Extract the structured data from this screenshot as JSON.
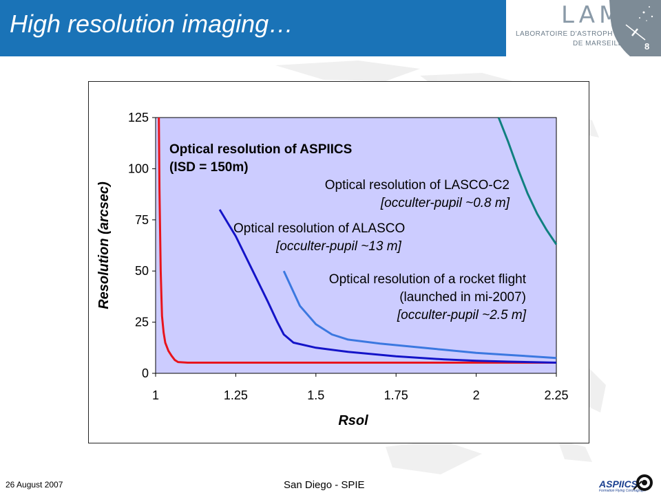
{
  "header": {
    "title": "High resolution imaging…",
    "page_number": "8",
    "logo": {
      "name": "LAM",
      "line1": "LABORATOIRE D'ASTROPHYSIQUE",
      "line2": "DE MARSEILLE"
    }
  },
  "footer": {
    "date": "26 August 2007",
    "venue": "San Diego - SPIE",
    "logo_text": "ASPIICS",
    "logo_subtext": "Formation Flying Coronagraph"
  },
  "colors": {
    "header_bg": "#1a73b7",
    "plot_bg": "#ccccff",
    "aspiics": "#e8141c",
    "alasco": "#1414c8",
    "rocket": "#3b78e0",
    "lasco_c2": "#108080"
  },
  "chart_data": {
    "type": "line",
    "title": "",
    "xlabel": "Rsol",
    "ylabel": "Resolution (arcsec)",
    "xlim": [
      1,
      2.25
    ],
    "ylim": [
      0,
      125
    ],
    "xticks": [
      "1",
      "1.25",
      "1.5",
      "1.75",
      "2",
      "2.25"
    ],
    "yticks": [
      "0",
      "25",
      "50",
      "75",
      "100",
      "125"
    ],
    "grid": false,
    "legend": "none",
    "series": [
      {
        "key": "aspiics",
        "x": [
          1.01,
          1.012,
          1.014,
          1.016,
          1.018,
          1.02,
          1.025,
          1.03,
          1.04,
          1.05,
          1.06,
          1.07,
          1.1,
          1.3,
          1.6,
          2.0,
          2.25
        ],
        "y": [
          125,
          90,
          70,
          50,
          38,
          28,
          20,
          15,
          11,
          8.5,
          6.5,
          5.5,
          5.2,
          5.2,
          5.2,
          5.2,
          5.2
        ]
      },
      {
        "key": "alasco",
        "x": [
          1.2,
          1.25,
          1.3,
          1.35,
          1.38,
          1.4,
          1.43,
          1.5,
          1.6,
          1.75,
          1.9,
          2.0,
          2.1,
          2.25
        ],
        "y": [
          80,
          67,
          51,
          35,
          25,
          19,
          15,
          12.5,
          10.5,
          8.3,
          6.8,
          6.1,
          5.7,
          5.2
        ]
      },
      {
        "key": "rocket",
        "x": [
          1.4,
          1.45,
          1.5,
          1.55,
          1.6,
          1.7,
          1.8,
          1.9,
          2.0,
          2.1,
          2.25
        ],
        "y": [
          50,
          33,
          24,
          19,
          16.5,
          14.5,
          13,
          11.5,
          10,
          9,
          7.5
        ]
      },
      {
        "key": "lasco_c2",
        "x": [
          2.07,
          2.1,
          2.13,
          2.16,
          2.19,
          2.22,
          2.25
        ],
        "y": [
          125,
          113,
          100,
          88,
          78,
          70,
          63
        ]
      }
    ],
    "annotations": [
      {
        "key": "aspiics",
        "lines": [
          "Optical resolution of ASPIICS",
          "(ISD = 150m)"
        ]
      },
      {
        "key": "lasco_c2",
        "lines": [
          "Optical resolution of LASCO-C2",
          "[occulter-pupil ~0.8 m]"
        ]
      },
      {
        "key": "alasco",
        "lines": [
          "Optical resolution of ALASCO",
          "[occulter-pupil ~13 m]"
        ]
      },
      {
        "key": "rocket",
        "lines": [
          "Optical resolution of a rocket flight",
          "(launched in mi-2007)",
          "[occulter-pupil ~2.5 m]"
        ]
      }
    ]
  }
}
